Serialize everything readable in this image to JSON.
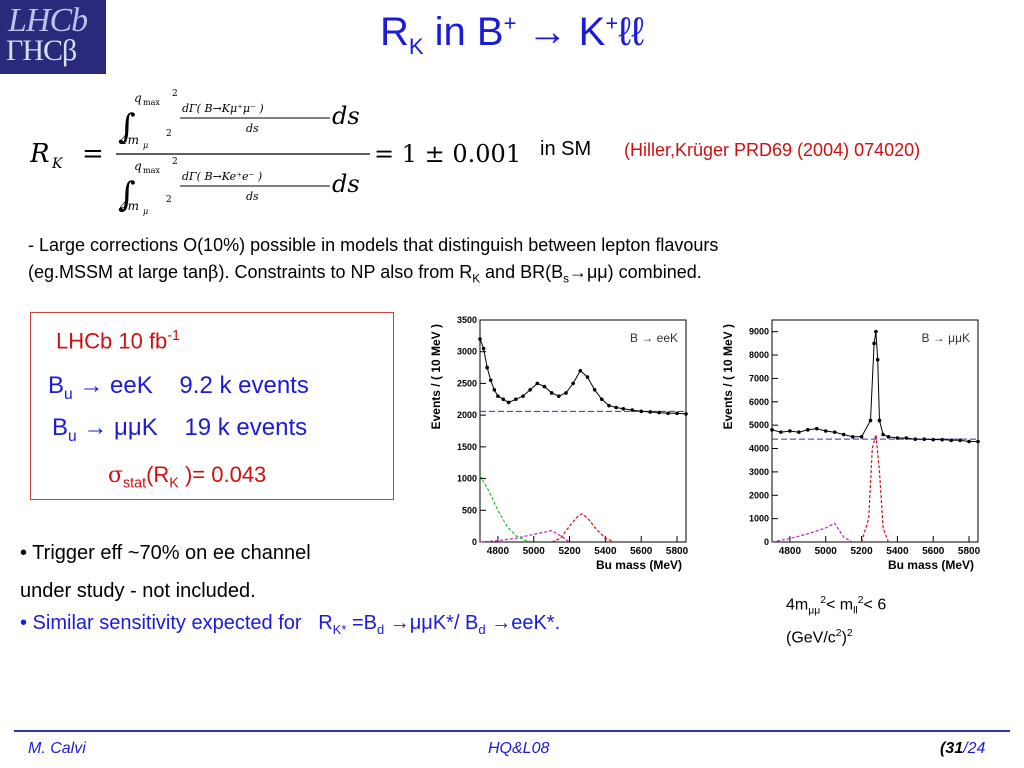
{
  "header": {
    "logo_top": "LHCb",
    "logo_bottom": "ΓHCβ",
    "title_main": "R",
    "title_sub": "K",
    "title_mid": " in B",
    "title_sup1": "+",
    "title_arrow": " → K",
    "title_sup2": "+",
    "title_end": "ℓℓ"
  },
  "formula": {
    "lhs": "R",
    "lhs_sub": "K",
    "equals": "=",
    "rhs": "= 1 ± 0.001",
    "qmax": "q",
    "qmax_sub": "max",
    "sq": "2",
    "lower": "4m",
    "lower_sub": "μ",
    "num_integrand": "dΓ( B→Kμ⁺μ⁻ )",
    "den_integrand": "dΓ( B→Ke⁺e⁻ )",
    "ds": "ds",
    "ds_big": "ds"
  },
  "in_sm": "in SM",
  "citation": "(Hiller,Krüger PRD69 (2004) 074020)",
  "corrections": {
    "p1": "- Large corrections O(10%) possible in models that distinguish between lepton flavours",
    "p2a": "(eg.MSSM at large tan",
    "p2b": "β",
    "p2c": "). Constraints to NP also from R",
    "p2d": "K",
    "p2e": " and BR(B",
    "p2f": "s",
    "p2g": "→μμ) combined."
  },
  "box": {
    "lumi": "LHCb 10 fb",
    "lumi_sup": "-1",
    "eek_label": "B",
    "eek_sub": "u",
    "eek_rest": " → eeK",
    "eek_events": "9.2 k events",
    "mmk_label": "B",
    "mmk_sub": "u",
    "mmk_rest": " → μμK",
    "mmk_events": "19 k events",
    "sigma": "σ",
    "sigma_sub": "stat",
    "sigma_rest1": "(R",
    "sigma_rest_sub": "K",
    "sigma_rest2": " )= 0.043"
  },
  "trigger": {
    "line1": "• Trigger eff ~70% on ee channel",
    "line2": "under study - not included."
  },
  "similar": {
    "a": "• Similar sensitivity expected for",
    "b": "R",
    "b_sub": "K*",
    "c": " =B",
    "c_sub": "d",
    "d": " →μμK*/ B",
    "d_sub": "d",
    "e": " →eeK*."
  },
  "mass_window": {
    "l1a": "4m",
    "l1b": "μμ",
    "l1c": "2",
    "l1d": "< m",
    "l1e": "ll",
    "l1f": "2",
    "l1g": "< 6",
    "l2a": "(GeV/c",
    "l2b": "2",
    "l2c": ")",
    "l2d": "2"
  },
  "footer": {
    "author": "M. Calvi",
    "conference": "HQ&L08",
    "page_a": "(31",
    "page_b": "/24"
  },
  "chart_data": [
    {
      "type": "scatter",
      "legend": "B → eeK",
      "xlabel": "Bu mass (MeV)",
      "ylabel": "Events / ( 10 MeV )",
      "xlim": [
        4700,
        5850
      ],
      "ylim": [
        0,
        3500
      ],
      "xticks": [
        4800,
        5000,
        5200,
        5400,
        5600,
        5800
      ],
      "yticks": [
        0,
        500,
        1000,
        1500,
        2000,
        2500,
        3000,
        3500
      ],
      "background_level": 2060,
      "series": [
        {
          "x": [
            4700,
            4720,
            4740,
            4760,
            4780,
            4800,
            4830,
            4860,
            4900,
            4940,
            4980,
            5020,
            5060,
            5100,
            5140,
            5180,
            5220,
            5260,
            5300,
            5340,
            5380,
            5420,
            5460,
            5500,
            5550,
            5600,
            5650,
            5700,
            5750,
            5800,
            5850
          ],
          "y": [
            3200,
            3050,
            2750,
            2550,
            2400,
            2300,
            2250,
            2200,
            2250,
            2300,
            2400,
            2500,
            2450,
            2350,
            2300,
            2350,
            2500,
            2700,
            2600,
            2400,
            2250,
            2150,
            2120,
            2100,
            2080,
            2060,
            2050,
            2040,
            2030,
            2030,
            2020
          ]
        },
        {
          "x": [
            4700,
            4750,
            4800,
            4850,
            4900,
            4950,
            5000
          ],
          "y": [
            1050,
            800,
            500,
            250,
            100,
            30,
            0
          ]
        },
        {
          "x": [
            5100,
            5150,
            5200,
            5250,
            5270,
            5300,
            5350,
            5400,
            5450
          ],
          "y": [
            0,
            60,
            250,
            420,
            440,
            380,
            200,
            60,
            0
          ]
        },
        {
          "x": [
            4700,
            4800,
            4900,
            5000,
            5100,
            5150,
            5200
          ],
          "y": [
            0,
            20,
            60,
            120,
            180,
            100,
            0
          ]
        }
      ]
    },
    {
      "type": "scatter",
      "legend": "B → μμK",
      "xlabel": "Bu mass (MeV)",
      "ylabel": "Events / ( 10 MeV )",
      "xlim": [
        4700,
        5850
      ],
      "ylim": [
        0,
        9500
      ],
      "xticks": [
        4800,
        5000,
        5200,
        5400,
        5600,
        5800
      ],
      "yticks": [
        0,
        1000,
        2000,
        3000,
        4000,
        5000,
        6000,
        7000,
        8000,
        9000
      ],
      "background_level": 4400,
      "series": [
        {
          "x": [
            4700,
            4750,
            4800,
            4850,
            4900,
            4950,
            5000,
            5050,
            5100,
            5150,
            5200,
            5250,
            5270,
            5280,
            5290,
            5300,
            5320,
            5350,
            5400,
            5450,
            5500,
            5550,
            5600,
            5650,
            5700,
            5750,
            5800,
            5850
          ],
          "y": [
            4800,
            4700,
            4750,
            4700,
            4800,
            4850,
            4750,
            4700,
            4600,
            4500,
            4500,
            5200,
            8500,
            9000,
            7800,
            5200,
            4600,
            4500,
            4450,
            4450,
            4400,
            4400,
            4380,
            4380,
            4350,
            4350,
            4300,
            4300
          ]
        },
        {
          "x": [
            5200,
            5240,
            5260,
            5280,
            5300,
            5320,
            5350
          ],
          "y": [
            0,
            1000,
            4000,
            4600,
            3000,
            600,
            0
          ]
        },
        {
          "x": [
            4700,
            4800,
            4900,
            5000,
            5050,
            5100,
            5150
          ],
          "y": [
            0,
            150,
            350,
            600,
            800,
            200,
            0
          ]
        }
      ]
    }
  ]
}
